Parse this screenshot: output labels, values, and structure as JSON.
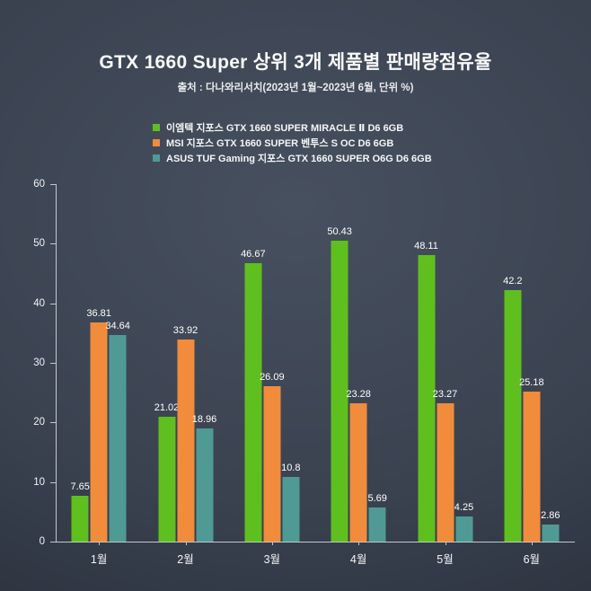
{
  "page": {
    "title": "GTX 1660 Super 상위 3개 제품별 판매량점유율",
    "subtitle": "출처 : 다나와리서치(2023년 1월~2023년 6월, 단위 %)"
  },
  "colors": {
    "background_center": "#47505f",
    "background_edge": "#282e39",
    "text": "#ffffff",
    "axis": "#c3c7cd",
    "series_green": "#5fbf1f",
    "series_orange": "#f08c3c",
    "series_teal": "#4f9a94"
  },
  "chart_data": {
    "type": "bar",
    "title": "GTX 1660 Super 상위 3개 제품별 판매량점유율",
    "subtitle": "출처 : 다나와리서치(2023년 1월~2023년 6월, 단위 %)",
    "categories": [
      "1월",
      "2월",
      "3월",
      "4월",
      "5월",
      "6월"
    ],
    "series": [
      {
        "name": "이엠텍 지포스 GTX 1660 SUPER MIRACLE Ⅱ D6 6GB",
        "color": "#5fbf1f",
        "values": [
          7.65,
          21.02,
          46.67,
          50.43,
          48.11,
          42.2
        ]
      },
      {
        "name": "MSI 지포스 GTX 1660 SUPER 벤투스 S OC D6 6GB",
        "color": "#f08c3c",
        "values": [
          36.81,
          33.92,
          26.09,
          23.28,
          23.27,
          25.18
        ]
      },
      {
        "name": "ASUS TUF Gaming 지포스 GTX 1660 SUPER O6G D6 6GB",
        "color": "#4f9a94",
        "values": [
          34.64,
          18.96,
          10.8,
          5.69,
          4.25,
          2.86
        ]
      }
    ],
    "ylim": [
      0,
      60
    ],
    "yticks": [
      0,
      10,
      20,
      30,
      40,
      50,
      60
    ],
    "legend_position": "top",
    "grid": false,
    "value_labels": true
  }
}
